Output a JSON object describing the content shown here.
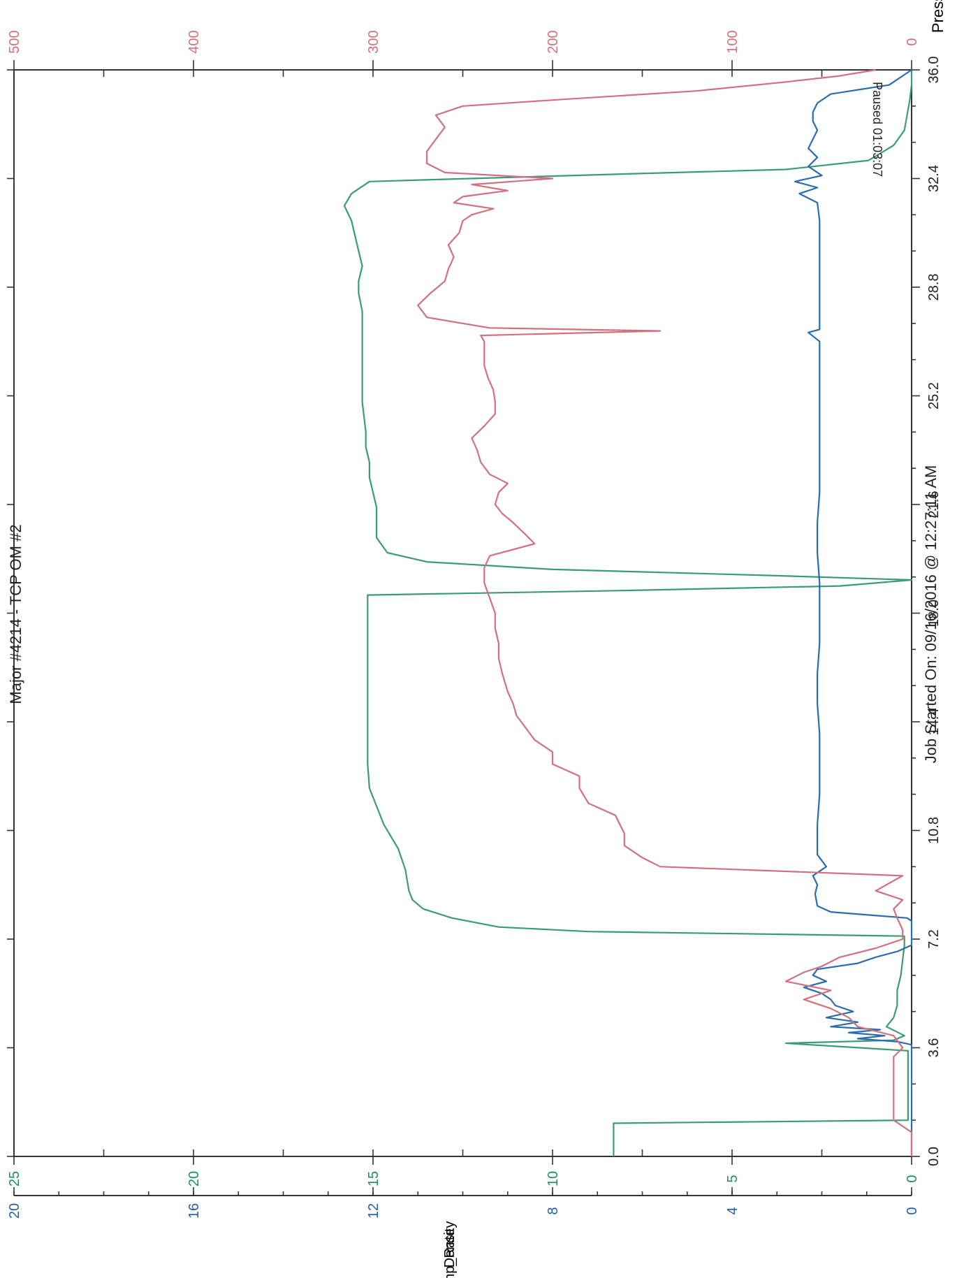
{
  "header": {
    "title": "Major #4214 - TCP OM #2",
    "footer": "Job Started On: 09/16/2016 @ 12:27:11 AM",
    "annotation": "Paused 01:03:07"
  },
  "chart_data": {
    "type": "line",
    "orientation": "rotated-90",
    "x_axis": {
      "label": "",
      "range": [
        0,
        36
      ],
      "ticks": [
        "0.0",
        "3.6",
        "7.2",
        "10.8",
        "14.4",
        "18.0",
        "21.6",
        "25.2",
        "28.8",
        "32.4",
        "36.0"
      ]
    },
    "axes": {
      "press": {
        "label": "Press",
        "color": "#d46f7c",
        "range": [
          0,
          500
        ],
        "ticks": [
          "0",
          "100",
          "200",
          "300",
          "400",
          "500"
        ]
      },
      "density": {
        "label": "Density",
        "color": "#1e8f5a",
        "range": [
          0,
          25
        ],
        "ticks": [
          "0",
          "5",
          "10",
          "15",
          "20",
          "25"
        ]
      },
      "pump_rate": {
        "label": "Pump_Rate",
        "color": "#1f5fa8",
        "range": [
          0,
          20
        ],
        "ticks": [
          "0",
          "4",
          "8",
          "12",
          "16",
          "20"
        ]
      }
    },
    "series": [
      {
        "name": "Density",
        "axis": "density",
        "color": "#3a9b74",
        "points": [
          [
            0,
            8.3
          ],
          [
            0.3,
            8.3
          ],
          [
            0.8,
            8.3
          ],
          [
            1.1,
            8.3
          ],
          [
            1.2,
            0.1
          ],
          [
            3.5,
            0.1
          ],
          [
            3.75,
            3.5
          ],
          [
            3.85,
            0.5
          ],
          [
            4.0,
            0.2
          ],
          [
            4.3,
            0.7
          ],
          [
            4.6,
            0.5
          ],
          [
            5.0,
            0.4
          ],
          [
            5.5,
            0.4
          ],
          [
            6.0,
            0.3
          ],
          [
            7.0,
            0.2
          ],
          [
            7.3,
            0.2
          ],
          [
            7.45,
            9.0
          ],
          [
            7.6,
            11.5
          ],
          [
            7.9,
            12.8
          ],
          [
            8.2,
            13.6
          ],
          [
            8.5,
            13.9
          ],
          [
            8.8,
            14.0
          ],
          [
            9.5,
            14.1
          ],
          [
            10.2,
            14.3
          ],
          [
            11.0,
            14.7
          ],
          [
            11.6,
            14.9
          ],
          [
            12.2,
            15.1
          ],
          [
            13.0,
            15.15
          ],
          [
            14.0,
            15.15
          ],
          [
            15.0,
            15.15
          ],
          [
            16.0,
            15.15
          ],
          [
            17.0,
            15.15
          ],
          [
            18.0,
            15.15
          ],
          [
            18.6,
            15.15
          ],
          [
            18.75,
            8.0
          ],
          [
            18.9,
            2.0
          ],
          [
            19.1,
            0.0
          ],
          [
            19.25,
            4.0
          ],
          [
            19.45,
            10.0
          ],
          [
            19.7,
            13.5
          ],
          [
            20.0,
            14.6
          ],
          [
            20.5,
            14.9
          ],
          [
            21.0,
            14.9
          ],
          [
            21.5,
            14.9
          ],
          [
            22.0,
            15.0
          ],
          [
            22.5,
            15.1
          ],
          [
            23.0,
            15.1
          ],
          [
            23.5,
            15.2
          ],
          [
            24.0,
            15.2
          ],
          [
            25.0,
            15.3
          ],
          [
            26.0,
            15.3
          ],
          [
            27.0,
            15.3
          ],
          [
            28.0,
            15.3
          ],
          [
            28.6,
            15.4
          ],
          [
            29.0,
            15.4
          ],
          [
            29.5,
            15.3
          ],
          [
            30.0,
            15.4
          ],
          [
            30.5,
            15.5
          ],
          [
            31.0,
            15.6
          ],
          [
            31.5,
            15.8
          ],
          [
            31.9,
            15.6
          ],
          [
            32.3,
            15.1
          ],
          [
            32.55,
            8.0
          ],
          [
            32.7,
            3.5
          ],
          [
            33.0,
            1.2
          ],
          [
            33.5,
            0.5
          ],
          [
            34.0,
            0.2
          ],
          [
            35.0,
            0.05
          ],
          [
            35.5,
            0.0
          ],
          [
            36.0,
            0.0
          ]
        ]
      },
      {
        "name": "Pump_Rate",
        "axis": "pump_rate",
        "color": "#2a6cb0",
        "points": [
          [
            0,
            0
          ],
          [
            3.7,
            0
          ],
          [
            3.8,
            0.3
          ],
          [
            3.9,
            1.2
          ],
          [
            4.0,
            0.6
          ],
          [
            4.1,
            1.4
          ],
          [
            4.2,
            0.7
          ],
          [
            4.3,
            1.8
          ],
          [
            4.45,
            1.2
          ],
          [
            4.6,
            1.9
          ],
          [
            4.8,
            1.3
          ],
          [
            5.0,
            1.7
          ],
          [
            5.2,
            1.8
          ],
          [
            5.4,
            2.0
          ],
          [
            5.6,
            2.4
          ],
          [
            5.8,
            1.9
          ],
          [
            6.0,
            2.2
          ],
          [
            6.2,
            2.1
          ],
          [
            6.4,
            1.2
          ],
          [
            6.6,
            0.8
          ],
          [
            6.8,
            0.3
          ],
          [
            7.0,
            0
          ],
          [
            7.8,
            0
          ],
          [
            7.9,
            0.1
          ],
          [
            8.1,
            1.8
          ],
          [
            8.3,
            2.1
          ],
          [
            8.7,
            2.15
          ],
          [
            9.0,
            2.1
          ],
          [
            9.3,
            2.2
          ],
          [
            9.6,
            1.9
          ],
          [
            9.8,
            2.0
          ],
          [
            10.0,
            2.1
          ],
          [
            11.0,
            2.1
          ],
          [
            12.0,
            2.05
          ],
          [
            13.0,
            2.05
          ],
          [
            14.0,
            2.05
          ],
          [
            15.0,
            2.1
          ],
          [
            16.0,
            2.1
          ],
          [
            17.0,
            2.05
          ],
          [
            18.0,
            2.05
          ],
          [
            19.0,
            2.05
          ],
          [
            20.0,
            2.1
          ],
          [
            21.0,
            2.1
          ],
          [
            22.0,
            2.05
          ],
          [
            23.0,
            2.05
          ],
          [
            24.0,
            2.05
          ],
          [
            25.0,
            2.05
          ],
          [
            26.0,
            2.05
          ],
          [
            27.0,
            2.05
          ],
          [
            27.3,
            2.3
          ],
          [
            27.4,
            2.05
          ],
          [
            28.0,
            2.05
          ],
          [
            29.0,
            2.05
          ],
          [
            30.0,
            2.05
          ],
          [
            31.0,
            2.05
          ],
          [
            31.6,
            2.1
          ],
          [
            31.9,
            2.5
          ],
          [
            32.1,
            2.1
          ],
          [
            32.3,
            2.6
          ],
          [
            32.5,
            2.0
          ],
          [
            32.8,
            2.3
          ],
          [
            33.1,
            2.1
          ],
          [
            33.4,
            2.3
          ],
          [
            33.7,
            2.2
          ],
          [
            34.0,
            2.1
          ],
          [
            34.3,
            2.2
          ],
          [
            34.6,
            2.2
          ],
          [
            34.9,
            2.1
          ],
          [
            35.2,
            1.8
          ],
          [
            35.5,
            0.5
          ],
          [
            36.0,
            0
          ]
        ]
      },
      {
        "name": "Press",
        "axis": "press",
        "color": "#d4707d",
        "points": [
          [
            0,
            0
          ],
          [
            0.8,
            0
          ],
          [
            1.2,
            10
          ],
          [
            2.2,
            10
          ],
          [
            3.3,
            10
          ],
          [
            3.6,
            5
          ],
          [
            4.0,
            10
          ],
          [
            4.3,
            30
          ],
          [
            4.6,
            35
          ],
          [
            4.9,
            45
          ],
          [
            5.2,
            60
          ],
          [
            5.5,
            45
          ],
          [
            5.8,
            70
          ],
          [
            6.1,
            60
          ],
          [
            6.3,
            50
          ],
          [
            6.6,
            40
          ],
          [
            6.9,
            20
          ],
          [
            7.2,
            5
          ],
          [
            7.5,
            5
          ],
          [
            7.9,
            8
          ],
          [
            8.2,
            10
          ],
          [
            8.5,
            5
          ],
          [
            8.8,
            20
          ],
          [
            9.2,
            8
          ],
          [
            9.3,
            5
          ],
          [
            9.6,
            140
          ],
          [
            9.9,
            150
          ],
          [
            10.3,
            160
          ],
          [
            10.7,
            160
          ],
          [
            11.3,
            165
          ],
          [
            11.7,
            180
          ],
          [
            12.2,
            185
          ],
          [
            12.6,
            185
          ],
          [
            13.0,
            200
          ],
          [
            13.4,
            200
          ],
          [
            13.8,
            210
          ],
          [
            14.2,
            215
          ],
          [
            14.6,
            220
          ],
          [
            15.0,
            222
          ],
          [
            15.4,
            225
          ],
          [
            16.0,
            228
          ],
          [
            16.5,
            230
          ],
          [
            17.0,
            230
          ],
          [
            17.5,
            232
          ],
          [
            18.0,
            232
          ],
          [
            18.5,
            235
          ],
          [
            19.0,
            238
          ],
          [
            19.5,
            238
          ],
          [
            19.9,
            235
          ],
          [
            20.3,
            210
          ],
          [
            20.6,
            215
          ],
          [
            21.0,
            222
          ],
          [
            21.3,
            228
          ],
          [
            21.6,
            232
          ],
          [
            22.0,
            230
          ],
          [
            22.3,
            225
          ],
          [
            22.6,
            235
          ],
          [
            23.0,
            240
          ],
          [
            23.4,
            242
          ],
          [
            23.8,
            245
          ],
          [
            24.2,
            238
          ],
          [
            24.6,
            232
          ],
          [
            25.0,
            232
          ],
          [
            25.4,
            233
          ],
          [
            25.8,
            236
          ],
          [
            26.2,
            238
          ],
          [
            26.6,
            238
          ],
          [
            27.0,
            238
          ],
          [
            27.2,
            240
          ],
          [
            27.35,
            140
          ],
          [
            27.45,
            235
          ],
          [
            27.8,
            270
          ],
          [
            28.2,
            275
          ],
          [
            28.6,
            268
          ],
          [
            29.0,
            260
          ],
          [
            29.4,
            258
          ],
          [
            29.8,
            255
          ],
          [
            30.2,
            258
          ],
          [
            30.6,
            252
          ],
          [
            31.0,
            250
          ],
          [
            31.2,
            245
          ],
          [
            31.4,
            233
          ],
          [
            31.6,
            255
          ],
          [
            31.8,
            250
          ],
          [
            32.0,
            225
          ],
          [
            32.2,
            245
          ],
          [
            32.4,
            200
          ],
          [
            32.6,
            260
          ],
          [
            32.9,
            270
          ],
          [
            33.3,
            270
          ],
          [
            33.7,
            265
          ],
          [
            34.1,
            260
          ],
          [
            34.5,
            265
          ],
          [
            34.8,
            250
          ],
          [
            35.0,
            200
          ],
          [
            35.3,
            120
          ],
          [
            35.6,
            70
          ],
          [
            35.8,
            40
          ],
          [
            36.0,
            20
          ]
        ]
      }
    ]
  }
}
